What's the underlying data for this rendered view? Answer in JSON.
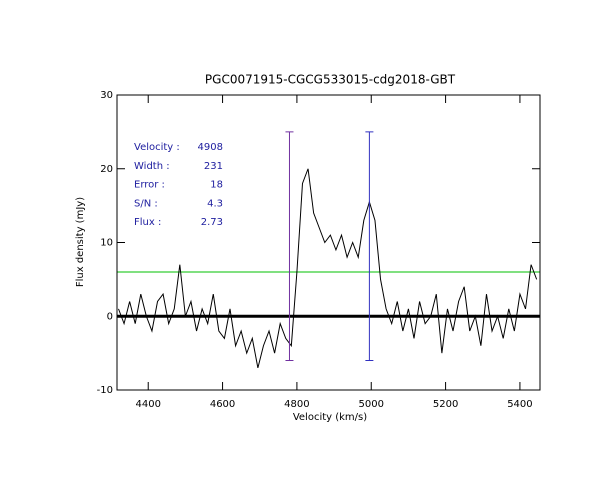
{
  "chart_data": {
    "type": "line",
    "title": "PGC0071915-CGCG533015-cdg2018-GBT",
    "x_label": "Velocity (km/s)",
    "y_label": "Flux density (mJy)",
    "color": "#000000",
    "x": [
      4320,
      4335,
      4350,
      4365,
      4380,
      4395,
      4410,
      4425,
      4440,
      4455,
      4470,
      4485,
      4500,
      4515,
      4530,
      4545,
      4560,
      4575,
      4590,
      4605,
      4620,
      4635,
      4650,
      4665,
      4680,
      4695,
      4710,
      4725,
      4740,
      4755,
      4770,
      4785,
      4800,
      4815,
      4830,
      4845,
      4860,
      4875,
      4890,
      4905,
      4920,
      4935,
      4950,
      4965,
      4980,
      4995,
      5010,
      5025,
      5040,
      5055,
      5070,
      5085,
      5100,
      5115,
      5130,
      5145,
      5160,
      5175,
      5190,
      5205,
      5220,
      5235,
      5250,
      5265,
      5280,
      5295,
      5310,
      5325,
      5340,
      5355,
      5370,
      5385,
      5400,
      5415,
      5430,
      5445
    ],
    "values": [
      1,
      -1,
      2,
      -1,
      3,
      0,
      -2,
      2,
      3,
      -1,
      1,
      7,
      0,
      2,
      -2,
      1,
      -1,
      3,
      -2,
      -3,
      1,
      -4,
      -2,
      -5,
      -3,
      -7,
      -4,
      -2,
      -5,
      -1,
      -3,
      -4,
      6,
      18,
      20,
      14,
      12,
      10,
      11,
      9,
      11,
      8,
      10,
      8,
      13,
      15.5,
      13,
      5,
      1,
      -1,
      2,
      -2,
      1,
      -3,
      2,
      -1,
      0,
      3,
      -5,
      1,
      -2,
      2,
      4,
      -2,
      0,
      -4,
      3,
      -2,
      0,
      -3,
      1,
      -2,
      3,
      1,
      7,
      5
    ],
    "xlim": [
      4316,
      5454
    ],
    "ylim": [
      -10,
      30
    ],
    "xticks": [
      4400,
      4600,
      4800,
      5000,
      5200,
      5400
    ],
    "yticks": [
      -10,
      0,
      10,
      20,
      30
    ],
    "hlines": [
      {
        "value": 0,
        "color": "#000000"
      },
      {
        "value": 6,
        "color": "#00c000"
      }
    ],
    "vlines": [
      {
        "x": 4780,
        "ymin": -6,
        "ymax": 25,
        "color": "#7030a0"
      },
      {
        "x": 4995,
        "ymin": -6,
        "ymax": 25,
        "color": "#3030c0"
      }
    ],
    "annotations": [
      {
        "label": "Velocity :",
        "value": 4908
      },
      {
        "label": "Width :",
        "value": 231
      },
      {
        "label": "Error :",
        "value": 18
      },
      {
        "label": "S/N :",
        "value": 4.3
      },
      {
        "label": "Flux :",
        "value": 2.73
      }
    ],
    "annotation_color": "#2020a0"
  }
}
